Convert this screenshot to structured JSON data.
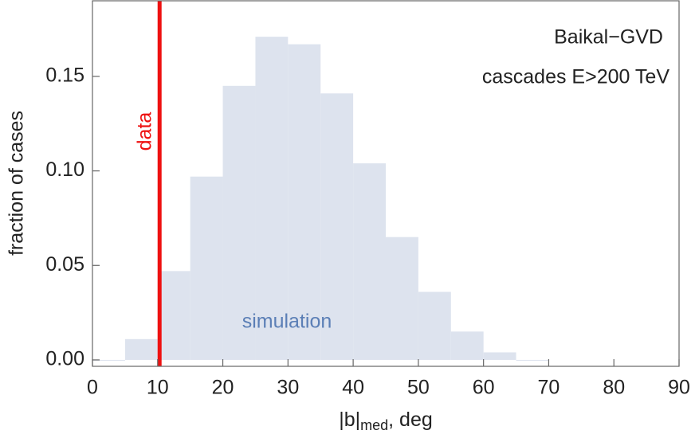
{
  "chart_data": {
    "type": "histogram",
    "y_label": "fraction of cases",
    "x_label": [
      "|b|",
      "med",
      ", deg"
    ],
    "annotations": [
      "Baikal−GVD",
      "cascades E>200 TeV"
    ],
    "bins": [
      0,
      5,
      10,
      15,
      20,
      25,
      30,
      35,
      40,
      45,
      50,
      55,
      60,
      65,
      70
    ],
    "series": [
      {
        "name": "simulation",
        "color": "#dde3ee",
        "label_color": "#5b7fb6",
        "values": [
          0,
          0.011,
          0.047,
          0.097,
          0.145,
          0.171,
          0.167,
          0.141,
          0.104,
          0.065,
          0.036,
          0.015,
          0.004,
          0
        ]
      }
    ],
    "data_line": {
      "x": 10.3,
      "label": "data",
      "color": "#ee1111"
    },
    "xlim": [
      0,
      90
    ],
    "ylim": [
      -0.0034,
      0.19
    ],
    "xticks": [
      0,
      10,
      20,
      30,
      40,
      50,
      60,
      70,
      80,
      90
    ],
    "yticks": [
      {
        "value": 0,
        "label": "0.00"
      },
      {
        "value": 0.05,
        "label": "0.05"
      },
      {
        "value": 0.1,
        "label": "0.10"
      },
      0.15
    ]
  }
}
